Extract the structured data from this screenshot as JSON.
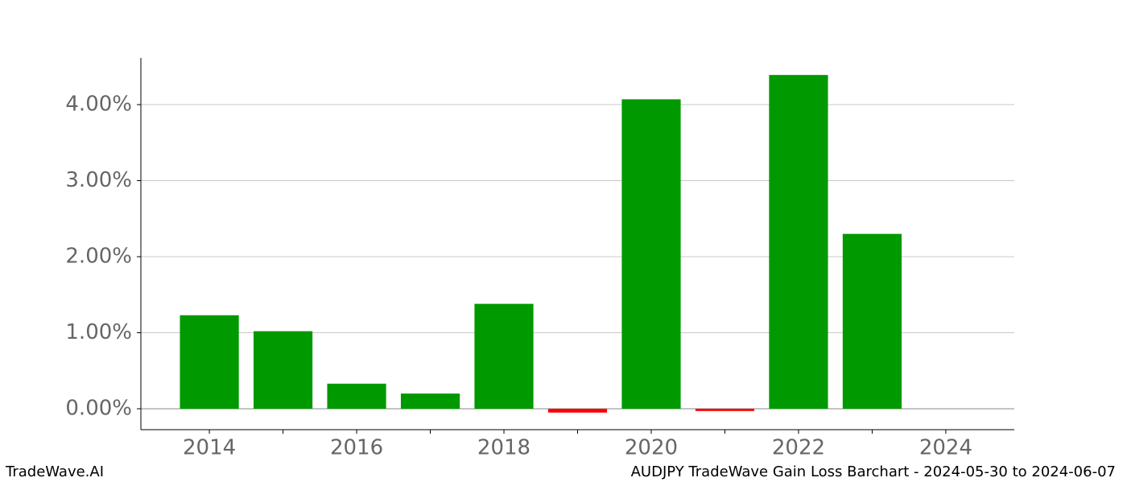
{
  "chart_data": {
    "type": "bar",
    "x": [
      2014,
      2015,
      2016,
      2017,
      2018,
      2019,
      2020,
      2021,
      2022,
      2023
    ],
    "values": [
      1.23,
      1.02,
      0.33,
      0.2,
      1.38,
      -0.05,
      4.07,
      -0.03,
      4.39,
      2.3
    ],
    "colors": [
      "#009900",
      "#009900",
      "#009900",
      "#009900",
      "#009900",
      "#ff0000",
      "#009900",
      "#ff0000",
      "#009900",
      "#009900"
    ],
    "xlim": [
      2013.07,
      2024.93
    ],
    "xticks": [
      2014,
      2016,
      2018,
      2020,
      2022,
      2024
    ],
    "xminorticks": [
      2015,
      2017,
      2019,
      2021,
      2023
    ],
    "ylim": [
      -0.275,
      4.614
    ],
    "yticks": [
      {
        "value": 0,
        "label": "0.00%"
      },
      {
        "value": 1,
        "label": "1.00%"
      },
      {
        "value": 2,
        "label": "2.00%"
      },
      {
        "value": 3,
        "label": "3.00%"
      },
      {
        "value": 4,
        "label": "4.00%"
      }
    ],
    "grid": true,
    "footer_left": "TradeWave.AI",
    "footer_right": "AUDJPY TradeWave Gain Loss Barchart - 2024-05-30 to 2024-06-07"
  }
}
